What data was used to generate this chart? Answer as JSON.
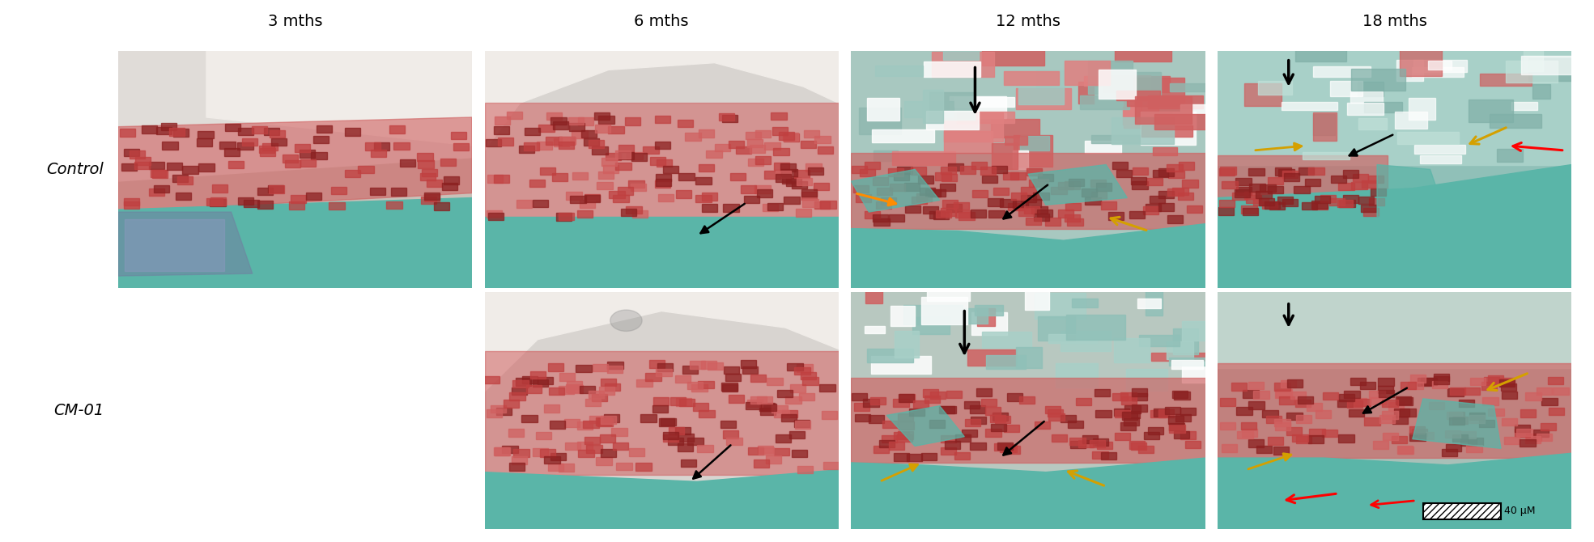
{
  "col_labels": [
    "3 mths",
    "6 mths",
    "12 mths",
    "18 mths"
  ],
  "row_labels": [
    "Control",
    "CM-01"
  ],
  "label_fontsize": 14,
  "col_label_fontsize": 14,
  "scalebar_text": "40 μM",
  "figsize": [
    19.69,
    6.7
  ],
  "dpi": 100,
  "teal": "#5ab5a8",
  "dark_red": "#8b2020",
  "mid_red": "#c04040",
  "pink_red": "#d06060",
  "blue_purple": "#7080a0",
  "white": "#ffffff",
  "light_bg": "#ddd8d0"
}
